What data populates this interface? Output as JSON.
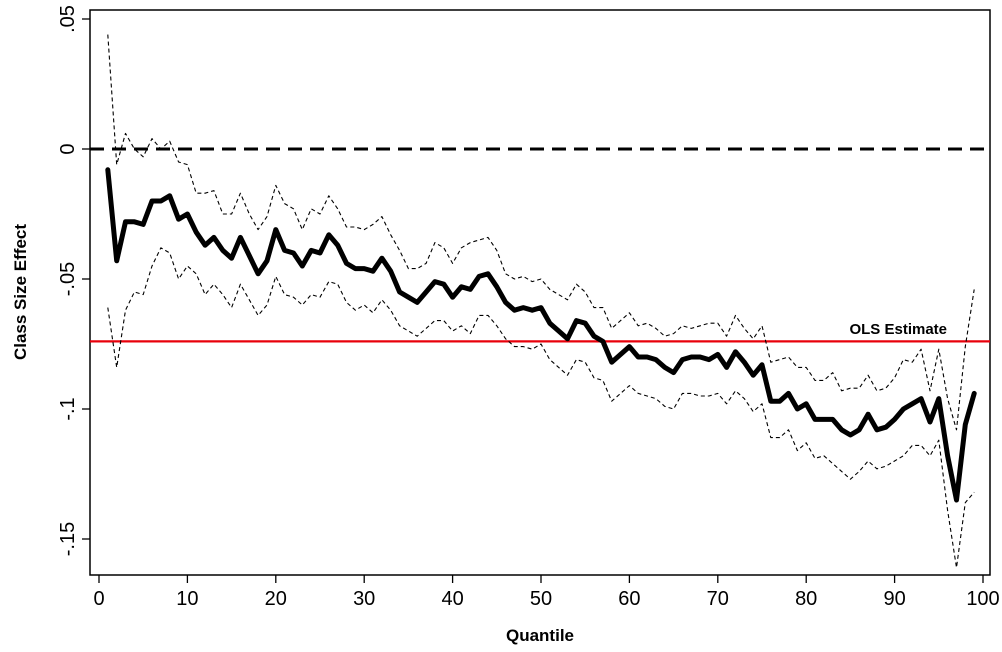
{
  "chart_data": {
    "type": "line",
    "title": "",
    "xlabel": "Quantile",
    "ylabel": "Class Size Effect",
    "xlim": [
      0,
      100
    ],
    "ylim": [
      -0.15,
      0.05
    ],
    "x_ticks": [
      0,
      10,
      20,
      30,
      40,
      50,
      60,
      70,
      80,
      90,
      100
    ],
    "x_tick_labels": [
      "0",
      "10",
      "20",
      "30",
      "40",
      "50",
      "60",
      "70",
      "80",
      "90",
      "100"
    ],
    "y_ticks": [
      0.05,
      0,
      -0.05,
      -0.1,
      -0.15
    ],
    "y_tick_labels": [
      ".05",
      "0",
      "-.05",
      "-.1",
      "-.15"
    ],
    "reference_lines": [
      {
        "y": 0,
        "style": "dashed",
        "color": "#000000"
      },
      {
        "y": -0.074,
        "style": "solid",
        "color": "#e8000b",
        "label": "OLS Estimate"
      }
    ],
    "x": [
      1,
      2,
      3,
      4,
      5,
      6,
      7,
      8,
      9,
      10,
      11,
      12,
      13,
      14,
      15,
      16,
      17,
      18,
      19,
      20,
      21,
      22,
      23,
      24,
      25,
      26,
      27,
      28,
      29,
      30,
      31,
      32,
      33,
      34,
      35,
      36,
      37,
      38,
      39,
      40,
      41,
      42,
      43,
      44,
      45,
      46,
      47,
      48,
      49,
      50,
      51,
      52,
      53,
      54,
      55,
      56,
      57,
      58,
      59,
      60,
      61,
      62,
      63,
      64,
      65,
      66,
      67,
      68,
      69,
      70,
      71,
      72,
      73,
      74,
      75,
      76,
      77,
      78,
      79,
      80,
      81,
      82,
      83,
      84,
      85,
      86,
      87,
      88,
      89,
      90,
      91,
      92,
      93,
      94,
      95,
      96,
      97,
      98,
      99
    ],
    "series": [
      {
        "style": "solid-thick",
        "color": "#000000",
        "values": [
          -0.008,
          -0.043,
          -0.028,
          -0.028,
          -0.029,
          -0.02,
          -0.02,
          -0.018,
          -0.027,
          -0.025,
          -0.032,
          -0.037,
          -0.034,
          -0.039,
          -0.042,
          -0.034,
          -0.041,
          -0.048,
          -0.043,
          -0.031,
          -0.039,
          -0.04,
          -0.045,
          -0.039,
          -0.04,
          -0.033,
          -0.037,
          -0.044,
          -0.046,
          -0.046,
          -0.047,
          -0.042,
          -0.047,
          -0.055,
          -0.057,
          -0.059,
          -0.055,
          -0.051,
          -0.052,
          -0.057,
          -0.053,
          -0.054,
          -0.049,
          -0.048,
          -0.053,
          -0.059,
          -0.062,
          -0.061,
          -0.062,
          -0.061,
          -0.067,
          -0.07,
          -0.073,
          -0.066,
          -0.067,
          -0.072,
          -0.074,
          -0.082,
          -0.079,
          -0.076,
          -0.08,
          -0.08,
          -0.081,
          -0.084,
          -0.086,
          -0.081,
          -0.08,
          -0.08,
          -0.081,
          -0.079,
          -0.084,
          -0.078,
          -0.082,
          -0.087,
          -0.083,
          -0.097,
          -0.097,
          -0.094,
          -0.1,
          -0.098,
          -0.104,
          -0.104,
          -0.104,
          -0.108,
          -0.11,
          -0.108,
          -0.102,
          -0.108,
          -0.107,
          -0.104,
          -0.1,
          -0.098,
          -0.096,
          -0.105,
          -0.096,
          -0.118,
          -0.135,
          -0.106,
          -0.094
        ]
      },
      {
        "style": "dashed-thin",
        "color": "#000000",
        "values": [
          0.044,
          -0.006,
          0.006,
          0.0,
          -0.003,
          0.004,
          0.0,
          0.003,
          -0.005,
          -0.006,
          -0.017,
          -0.017,
          -0.016,
          -0.025,
          -0.025,
          -0.017,
          -0.025,
          -0.031,
          -0.026,
          -0.014,
          -0.021,
          -0.023,
          -0.031,
          -0.023,
          -0.025,
          -0.018,
          -0.023,
          -0.03,
          -0.03,
          -0.031,
          -0.029,
          -0.026,
          -0.033,
          -0.039,
          -0.046,
          -0.046,
          -0.044,
          -0.036,
          -0.038,
          -0.044,
          -0.038,
          -0.036,
          -0.035,
          -0.034,
          -0.039,
          -0.048,
          -0.05,
          -0.049,
          -0.051,
          -0.05,
          -0.054,
          -0.056,
          -0.058,
          -0.052,
          -0.055,
          -0.061,
          -0.061,
          -0.069,
          -0.066,
          -0.063,
          -0.068,
          -0.067,
          -0.069,
          -0.072,
          -0.071,
          -0.068,
          -0.069,
          -0.068,
          -0.067,
          -0.067,
          -0.072,
          -0.064,
          -0.069,
          -0.073,
          -0.068,
          -0.082,
          -0.081,
          -0.08,
          -0.084,
          -0.084,
          -0.089,
          -0.089,
          -0.086,
          -0.093,
          -0.092,
          -0.092,
          -0.087,
          -0.093,
          -0.092,
          -0.088,
          -0.081,
          -0.082,
          -0.077,
          -0.093,
          -0.077,
          -0.096,
          -0.108,
          -0.076,
          -0.054
        ]
      },
      {
        "style": "dashed-thin",
        "color": "#000000",
        "values": [
          -0.061,
          -0.084,
          -0.062,
          -0.055,
          -0.056,
          -0.045,
          -0.038,
          -0.04,
          -0.05,
          -0.045,
          -0.048,
          -0.056,
          -0.052,
          -0.056,
          -0.061,
          -0.052,
          -0.058,
          -0.064,
          -0.06,
          -0.049,
          -0.056,
          -0.057,
          -0.06,
          -0.056,
          -0.057,
          -0.051,
          -0.052,
          -0.059,
          -0.062,
          -0.06,
          -0.063,
          -0.058,
          -0.062,
          -0.068,
          -0.07,
          -0.072,
          -0.069,
          -0.066,
          -0.066,
          -0.07,
          -0.068,
          -0.071,
          -0.064,
          -0.064,
          -0.068,
          -0.073,
          -0.076,
          -0.076,
          -0.077,
          -0.075,
          -0.081,
          -0.084,
          -0.087,
          -0.081,
          -0.082,
          -0.088,
          -0.089,
          -0.097,
          -0.094,
          -0.091,
          -0.094,
          -0.095,
          -0.096,
          -0.099,
          -0.1,
          -0.094,
          -0.094,
          -0.095,
          -0.095,
          -0.094,
          -0.098,
          -0.093,
          -0.096,
          -0.101,
          -0.098,
          -0.111,
          -0.111,
          -0.108,
          -0.116,
          -0.113,
          -0.119,
          -0.118,
          -0.121,
          -0.124,
          -0.127,
          -0.124,
          -0.12,
          -0.123,
          -0.122,
          -0.12,
          -0.118,
          -0.114,
          -0.114,
          -0.118,
          -0.112,
          -0.139,
          -0.161,
          -0.136,
          -0.132
        ]
      }
    ]
  }
}
